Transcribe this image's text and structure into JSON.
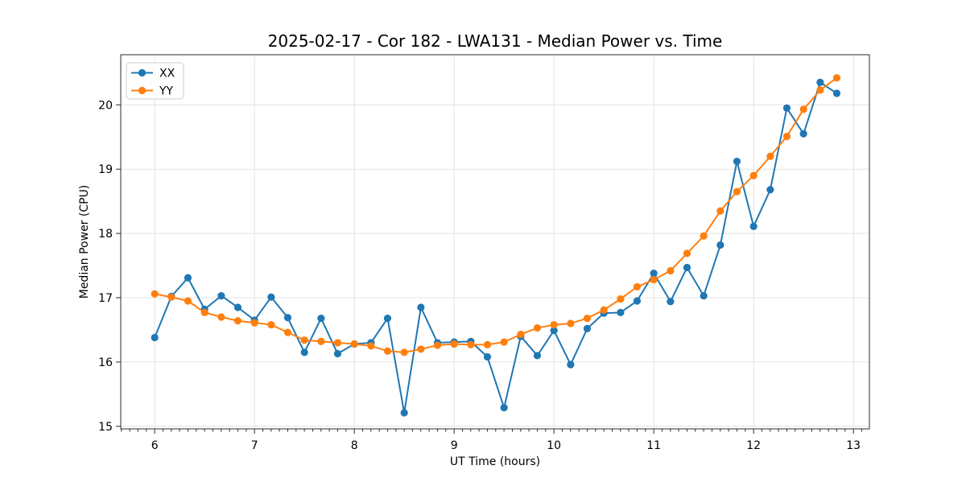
{
  "figure": {
    "background": "#ffffff",
    "title": "2025-02-17 - Cor 182 - LWA131 - Median Power vs. Time"
  },
  "colors": {
    "series_xx": "#1f77b4",
    "series_yy": "#ff7f0e",
    "grid": "#e3e3e3",
    "spine": "#2b2b2b",
    "tick": "#2b2b2b",
    "legend_border": "#cccccc",
    "legend_background": "#ffffff"
  },
  "legend": {
    "entries": [
      "XX",
      "YY"
    ]
  },
  "chart_data": {
    "type": "line",
    "title": "2025-02-17 - Cor 182 - LWA131 - Median Power vs. Time",
    "xlabel": "UT Time (hours)",
    "ylabel": "Median Power (CPU)",
    "xlim": [
      5.66,
      13.16
    ],
    "ylim": [
      14.96,
      20.78
    ],
    "x_ticks": [
      6,
      7,
      8,
      9,
      10,
      11,
      12,
      13
    ],
    "y_ticks": [
      15,
      16,
      17,
      18,
      19,
      20
    ],
    "x_minor_step": 0.08333,
    "grid": true,
    "legend_position": "upper-left",
    "marker": "circle",
    "x": [
      6.0,
      6.167,
      6.333,
      6.5,
      6.667,
      6.833,
      7.0,
      7.167,
      7.333,
      7.5,
      7.667,
      7.833,
      8.0,
      8.167,
      8.333,
      8.5,
      8.667,
      8.833,
      9.0,
      9.167,
      9.333,
      9.5,
      9.667,
      9.833,
      10.0,
      10.167,
      10.333,
      10.5,
      10.667,
      10.833,
      11.0,
      11.167,
      11.333,
      11.5,
      11.667,
      11.833,
      12.0,
      12.167,
      12.333,
      12.5,
      12.667,
      12.833
    ],
    "series": [
      {
        "name": "XX",
        "color": "#1f77b4",
        "values": [
          16.38,
          17.02,
          17.31,
          16.82,
          17.03,
          16.85,
          16.65,
          17.01,
          16.69,
          16.15,
          16.68,
          16.13,
          16.28,
          16.3,
          16.68,
          15.21,
          16.85,
          16.3,
          16.31,
          16.32,
          16.08,
          15.29,
          16.4,
          16.1,
          16.49,
          15.96,
          16.52,
          16.76,
          16.77,
          16.95,
          17.38,
          16.94,
          17.47,
          17.03,
          17.82,
          19.12,
          18.11,
          18.68,
          19.95,
          19.55,
          20.35,
          20.18
        ]
      },
      {
        "name": "YY",
        "color": "#ff7f0e",
        "values": [
          17.06,
          17.01,
          16.95,
          16.77,
          16.7,
          16.64,
          16.61,
          16.58,
          16.46,
          16.34,
          16.32,
          16.3,
          16.28,
          16.25,
          16.17,
          16.15,
          16.2,
          16.26,
          16.28,
          16.27,
          16.27,
          16.31,
          16.43,
          16.53,
          16.58,
          16.6,
          16.68,
          16.81,
          16.98,
          17.17,
          17.28,
          17.42,
          17.69,
          17.96,
          18.35,
          18.65,
          18.9,
          19.2,
          19.51,
          19.93,
          20.23,
          20.42
        ]
      }
    ]
  }
}
